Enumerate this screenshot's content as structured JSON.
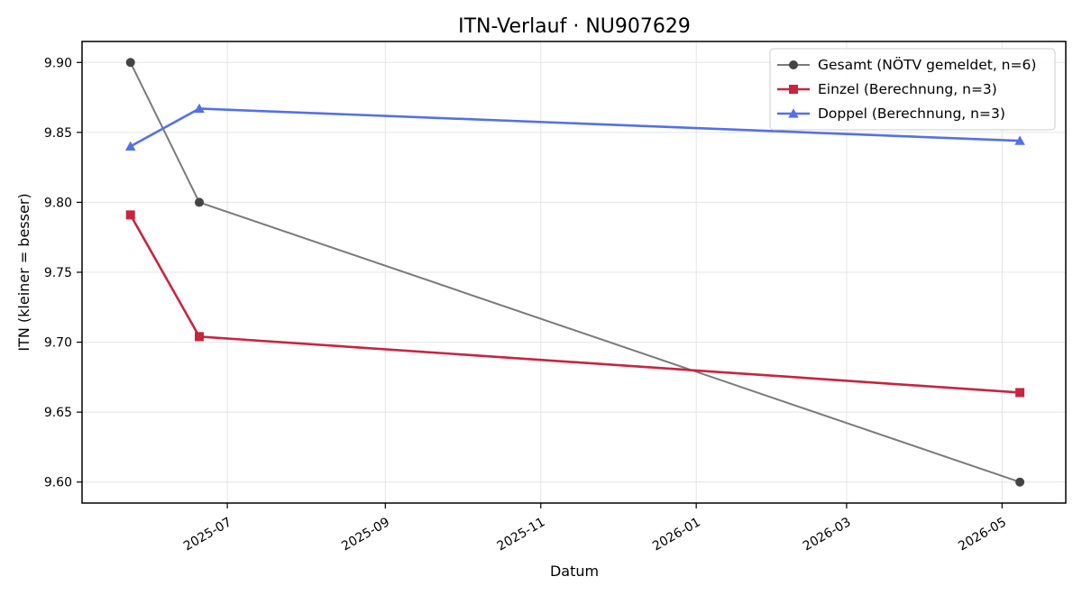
{
  "chart_data": {
    "type": "line",
    "title": "ITN-Verlauf · NU907629",
    "xlabel": "Datum",
    "ylabel": "ITN  (kleiner = besser)",
    "xlim": [
      "2025-05-05",
      "2026-05-26"
    ],
    "ylim": [
      9.585,
      9.915
    ],
    "x_ticks": [
      "2025-07",
      "2025-09",
      "2025-11",
      "2026-01",
      "2026-03",
      "2026-05"
    ],
    "y_ticks": [
      "9.60",
      "9.65",
      "9.70",
      "9.75",
      "9.80",
      "9.85",
      "9.90"
    ],
    "grid": true,
    "legend_position": "top-right",
    "series": [
      {
        "name": "Gesamt (NÖTV gemeldet, n=6)",
        "color": "#7a7a7a",
        "marker_color": "#444444",
        "marker": "circle",
        "points": [
          {
            "x": "2025-05-24",
            "y": 9.9
          },
          {
            "x": "2025-06-20",
            "y": 9.8
          },
          {
            "x": "2026-05-08",
            "y": 9.6
          }
        ]
      },
      {
        "name": "Einzel (Berechnung, n=3)",
        "color": "#c8243f",
        "marker_color": "#c8243f",
        "marker": "square",
        "points": [
          {
            "x": "2025-05-24",
            "y": 9.791
          },
          {
            "x": "2025-06-20",
            "y": 9.704
          },
          {
            "x": "2026-05-08",
            "y": 9.664
          }
        ]
      },
      {
        "name": "Doppel (Berechnung, n=3)",
        "color": "#5470e8",
        "marker_color": "#5470e8",
        "marker": "triangle",
        "points": [
          {
            "x": "2025-05-24",
            "y": 9.84
          },
          {
            "x": "2025-06-20",
            "y": 9.867
          },
          {
            "x": "2026-05-08",
            "y": 9.844
          }
        ]
      }
    ]
  }
}
